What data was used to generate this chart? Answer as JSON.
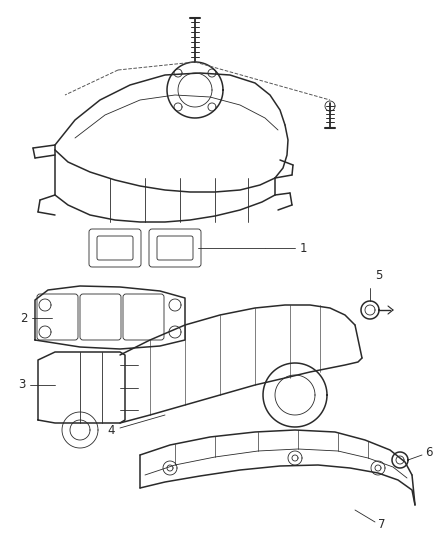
{
  "bg_color": "#ffffff",
  "line_color": "#2a2a2a",
  "label_color": "#2a2a2a",
  "figsize": [
    4.38,
    5.33
  ],
  "dpi": 100,
  "lw_main": 1.1,
  "lw_thin": 0.6,
  "font_size": 8.5
}
